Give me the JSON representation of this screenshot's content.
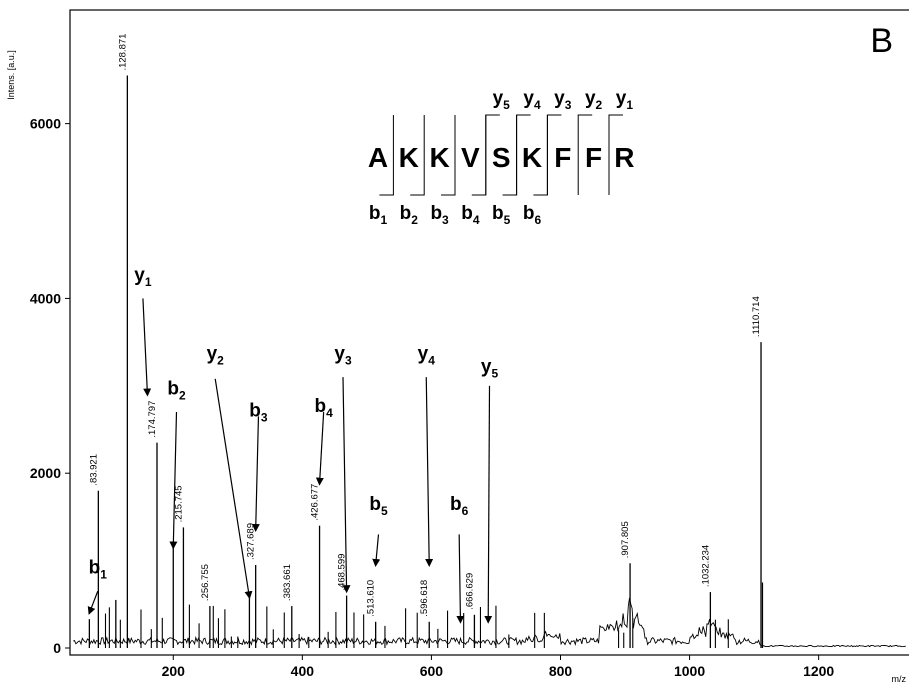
{
  "chart_data": {
    "type": "line",
    "ylabel": "Intens. [a.u.]",
    "xlabel": "m/z",
    "xlim": [
      40,
      1340
    ],
    "ylim": [
      -80,
      7300
    ],
    "x_ticks": [
      200,
      400,
      600,
      800,
      1000,
      1200
    ],
    "y_ticks": [
      0,
      2000,
      4000,
      6000
    ],
    "grid": false,
    "panel_label": "B",
    "peaks": [
      {
        "x": 70,
        "y": 330
      },
      {
        "x": 83.921,
        "y": 1800,
        "label": "83.921"
      },
      {
        "x": 111,
        "y": 550
      },
      {
        "x": 128.871,
        "y": 6550,
        "label": "128.871"
      },
      {
        "x": 174.797,
        "y": 2350,
        "label": "174.797"
      },
      {
        "x": 200,
        "y": 1150
      },
      {
        "x": 215.745,
        "y": 1380,
        "label": "215.745"
      },
      {
        "x": 256.755,
        "y": 480,
        "label": "256.755"
      },
      {
        "x": 318,
        "y": 580
      },
      {
        "x": 327.689,
        "y": 950,
        "label": "327.689"
      },
      {
        "x": 383.661,
        "y": 480,
        "label": "383.661"
      },
      {
        "x": 426.677,
        "y": 1400,
        "label": "426.677"
      },
      {
        "x": 468.599,
        "y": 600,
        "label": "468.599"
      },
      {
        "x": 513.61,
        "y": 300,
        "label": "513.610"
      },
      {
        "x": 596.618,
        "y": 300,
        "label": "596.618"
      },
      {
        "x": 666.629,
        "y": 380,
        "label": "666.629"
      },
      {
        "x": 907.805,
        "y": 970,
        "label": "907.805"
      },
      {
        "x": 1032.234,
        "y": 640,
        "label": "1032.234"
      },
      {
        "x": 1110.714,
        "y": 3500,
        "label": "1110.714"
      }
    ],
    "fragment_ions": [
      {
        "ion": "b",
        "index": "1",
        "x": 70,
        "label_x": 83,
        "label_y": 850,
        "arrow_from_y": 650,
        "arrow_to_y": 400
      },
      {
        "ion": "y",
        "index": "1",
        "x": 160,
        "label_x": 153,
        "label_y": 4200,
        "arrow_from_y": 4000,
        "arrow_to_y": 2900
      },
      {
        "ion": "b",
        "index": "2",
        "x": 200,
        "label_x": 205,
        "label_y": 2900,
        "arrow_from_y": 2700,
        "arrow_to_y": 1150
      },
      {
        "ion": "y",
        "index": "2",
        "x": 318,
        "label_x": 265,
        "label_y": 3300,
        "arrow_from_y": 3080,
        "arrow_to_y": 580
      },
      {
        "ion": "b",
        "index": "3",
        "x": 327.689,
        "label_x": 332,
        "label_y": 2650,
        "arrow_from_y": 2650,
        "arrow_to_y": 1350
      },
      {
        "ion": "b",
        "index": "4",
        "x": 426.677,
        "label_x": 433,
        "label_y": 2700,
        "arrow_from_y": 2700,
        "arrow_to_y": 1880
      },
      {
        "ion": "y",
        "index": "3",
        "x": 468.599,
        "label_x": 463,
        "label_y": 3300,
        "arrow_from_y": 3100,
        "arrow_to_y": 650
      },
      {
        "ion": "b",
        "index": "5",
        "x": 513.61,
        "label_x": 518,
        "label_y": 1580,
        "arrow_from_y": 1300,
        "arrow_to_y": 950
      },
      {
        "ion": "y",
        "index": "4",
        "x": 596.618,
        "label_x": 592,
        "label_y": 3300,
        "arrow_from_y": 3100,
        "arrow_to_y": 950
      },
      {
        "ion": "b",
        "index": "6",
        "x": 645,
        "label_x": 643,
        "label_y": 1580,
        "arrow_from_y": 1300,
        "arrow_to_y": 300
      },
      {
        "ion": "y",
        "index": "5",
        "x": 688,
        "label_x": 690,
        "label_y": 3150,
        "arrow_from_y": 3000,
        "arrow_to_y": 300
      }
    ],
    "sequence": {
      "residues": [
        "A",
        "K",
        "K",
        "V",
        "S",
        "K",
        "F",
        "F",
        "R"
      ],
      "b_ions": [
        "b1",
        "b2",
        "b3",
        "b4",
        "b5",
        "b6"
      ],
      "y_ions": [
        "y5",
        "y4",
        "y3",
        "y2",
        "y1"
      ]
    }
  }
}
